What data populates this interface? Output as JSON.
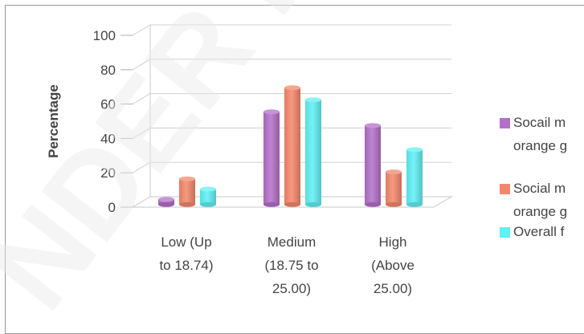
{
  "chart_data": {
    "type": "bar",
    "categories": [
      [
        "Low (Up",
        "to 18.74)"
      ],
      [
        "Medium",
        "(18.75 to",
        "25.00)"
      ],
      [
        "High",
        "(Above",
        "25.00)"
      ]
    ],
    "series": [
      {
        "name": [
          "Socail m",
          "orange g"
        ],
        "values": [
          3,
          54,
          46
        ],
        "color": "#b46fc9"
      },
      {
        "name": [
          "Social m",
          "orange g"
        ],
        "values": [
          15,
          68,
          19
        ],
        "color": "#f4876b"
      },
      {
        "name": [
          "Overall f"
        ],
        "values": [
          9,
          61,
          32
        ],
        "color": "#5ff0f4"
      }
    ],
    "ylabel": "Percentage",
    "ylim": [
      0,
      100
    ],
    "yticks": [
      "0",
      "20",
      "40",
      "60",
      "80",
      "100"
    ],
    "grid": true,
    "legend": "right"
  }
}
